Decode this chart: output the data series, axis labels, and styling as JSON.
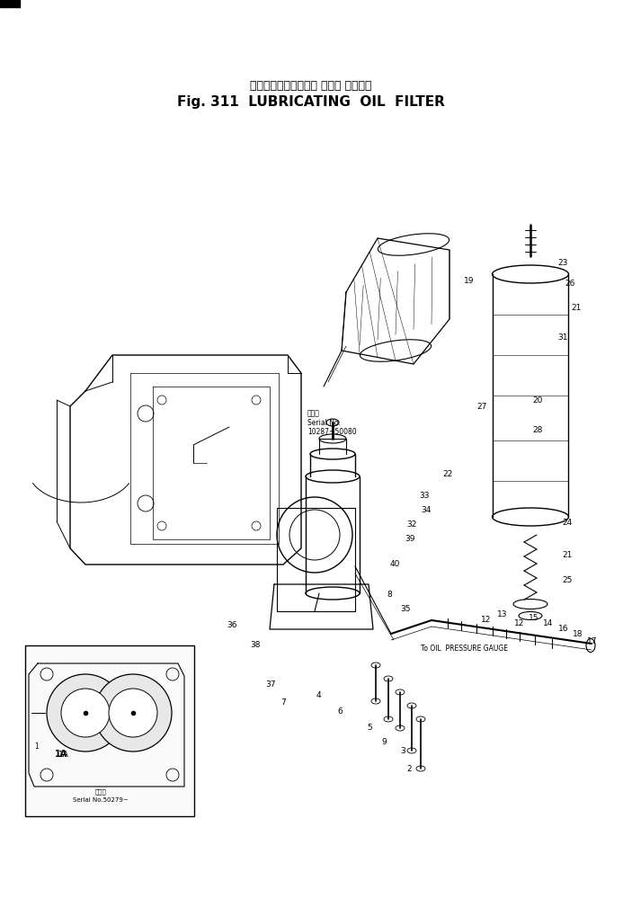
{
  "title_japanese": "ルーブリケーティング オイル フィルタ",
  "title_english": "Fig. 311  LUBRICATING  OIL  FILTER",
  "bg_color": "#ffffff",
  "line_color": "#000000",
  "text_color": "#000000",
  "page_width": 6.93,
  "page_height": 10.19,
  "title_japanese_fontsize": 9,
  "title_english_fontsize": 11,
  "serial_no_text1": "製番号",
  "serial_no_text2": "Serial No.",
  "serial_no_text3": "10287~50080",
  "serial_no2_text1": "製番号",
  "serial_no2_text2": "Serial No.50279~",
  "inset_label": "1A",
  "oil_pressure_gauge_text": "To OIL  PRESSURE GAUGE"
}
